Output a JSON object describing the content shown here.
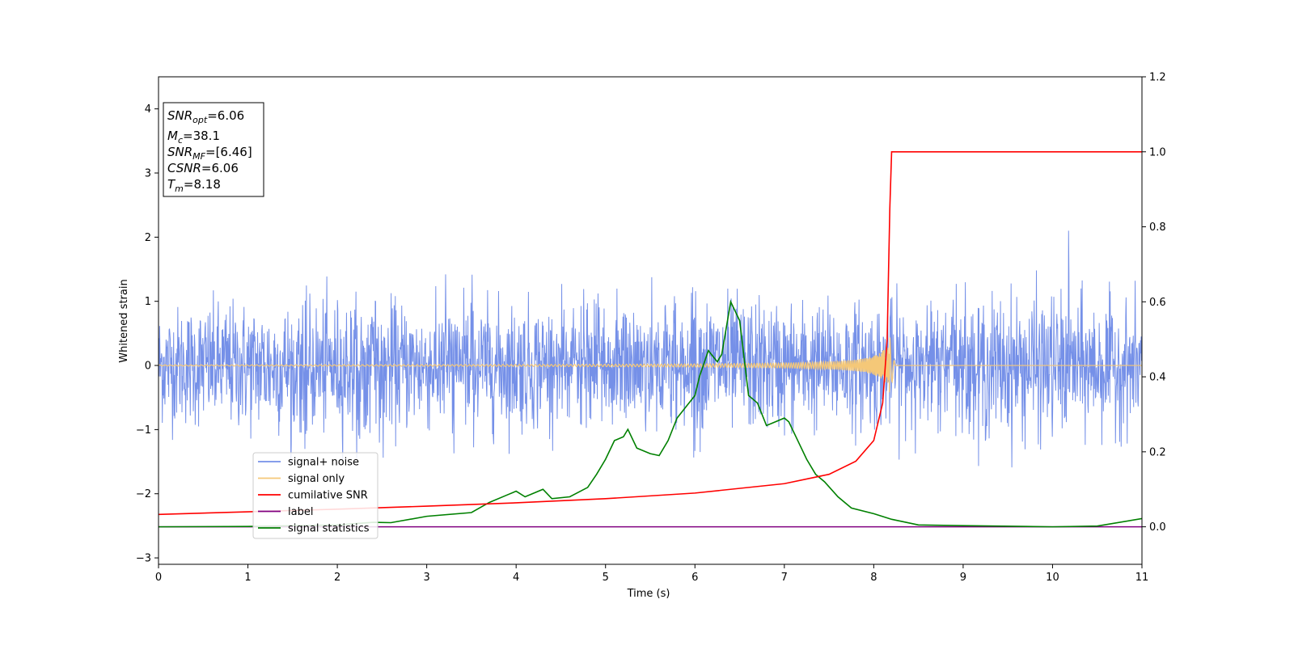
{
  "chart_data": {
    "type": "line",
    "xlabel": "Time (s)",
    "ylabel": "Whitened strain",
    "xlim": [
      0,
      11
    ],
    "ylim_left": [
      -3.1,
      4.5
    ],
    "ylim_right": [
      -0.1,
      1.2
    ],
    "x_ticks": [
      "0",
      "1",
      "2",
      "3",
      "4",
      "5",
      "6",
      "7",
      "8",
      "9",
      "10",
      "11"
    ],
    "y_ticks_left": [
      "−3",
      "−2",
      "−1",
      "0",
      "1",
      "2",
      "3",
      "4"
    ],
    "y_ticks_right": [
      "0.0",
      "0.2",
      "0.4",
      "0.6",
      "0.8",
      "1.0",
      "1.2"
    ],
    "grid": false,
    "legend_position": "lower-left",
    "info_box": {
      "lines": [
        {
          "label_main": "SNR",
          "label_sub": "opt",
          "value": "=6.06"
        },
        {
          "label_main": "M",
          "label_sub": "c",
          "value": "=38.1"
        },
        {
          "label_main": "SNR",
          "label_sub": "MF",
          "value": "=[6.46]"
        },
        {
          "label_main": "CSNR",
          "label_sub": "",
          "value": "=6.06"
        },
        {
          "label_main": "T",
          "label_sub": "m",
          "value": "=8.18"
        }
      ]
    },
    "series": [
      {
        "name": "signal+ noise",
        "color": "#7590e8",
        "axis": "left",
        "kind": "noise",
        "amplitude_envelope": {
          "x": [
            0,
            1,
            2,
            3,
            4,
            5,
            6,
            7,
            8,
            9,
            10,
            11
          ],
          "upper": [
            1.4,
            1.45,
            1.45,
            1.4,
            1.5,
            1.45,
            1.75,
            1.4,
            1.5,
            1.55,
            1.6,
            1.3
          ],
          "lower": [
            -1.3,
            -1.6,
            -1.7,
            -1.55,
            -1.5,
            -1.4,
            -1.5,
            -1.6,
            -1.45,
            -1.7,
            -1.8,
            -1.5
          ]
        },
        "peak": {
          "x": 10.18,
          "y": 2.1
        }
      },
      {
        "name": "signal only",
        "color": "#f5c878",
        "axis": "left",
        "kind": "chirp",
        "t_merger": 8.18,
        "peak_amplitude": 0.45
      },
      {
        "name": "cumilative SNR",
        "color": "#ff0000",
        "axis": "right",
        "x": [
          0,
          1,
          2,
          3,
          4,
          5,
          6,
          7,
          7.5,
          7.8,
          8.0,
          8.1,
          8.15,
          8.18,
          8.2,
          11
        ],
        "y": [
          0.033,
          0.04,
          0.047,
          0.055,
          0.064,
          0.075,
          0.09,
          0.115,
          0.14,
          0.175,
          0.23,
          0.33,
          0.5,
          0.85,
          1.0,
          1.0
        ]
      },
      {
        "name": "label",
        "color": "#800080",
        "axis": "right",
        "x": [
          0,
          11
        ],
        "y": [
          0.0,
          0.0
        ]
      },
      {
        "name": "signal statistics",
        "color": "#008000",
        "axis": "right",
        "x": [
          0,
          1.0,
          2.0,
          2.4,
          2.6,
          3.0,
          3.5,
          3.7,
          3.9,
          4.0,
          4.1,
          4.3,
          4.4,
          4.6,
          4.8,
          4.9,
          5.0,
          5.1,
          5.2,
          5.25,
          5.35,
          5.5,
          5.6,
          5.7,
          5.8,
          5.9,
          6.0,
          6.05,
          6.15,
          6.25,
          6.3,
          6.4,
          6.5,
          6.6,
          6.7,
          6.8,
          6.9,
          7.0,
          7.05,
          7.15,
          7.25,
          7.35,
          7.45,
          7.6,
          7.75,
          8.0,
          8.2,
          8.5,
          9.0,
          10.0,
          10.5,
          11.0
        ],
        "y": [
          0.0,
          0.001,
          0.005,
          0.012,
          0.011,
          0.028,
          0.038,
          0.065,
          0.085,
          0.095,
          0.08,
          0.1,
          0.075,
          0.08,
          0.105,
          0.14,
          0.18,
          0.23,
          0.24,
          0.26,
          0.21,
          0.195,
          0.19,
          0.23,
          0.29,
          0.32,
          0.35,
          0.4,
          0.47,
          0.44,
          0.46,
          0.6,
          0.55,
          0.35,
          0.33,
          0.27,
          0.28,
          0.29,
          0.28,
          0.23,
          0.18,
          0.14,
          0.12,
          0.08,
          0.05,
          0.035,
          0.02,
          0.005,
          0.003,
          0.0,
          0.002,
          0.022
        ]
      }
    ]
  }
}
